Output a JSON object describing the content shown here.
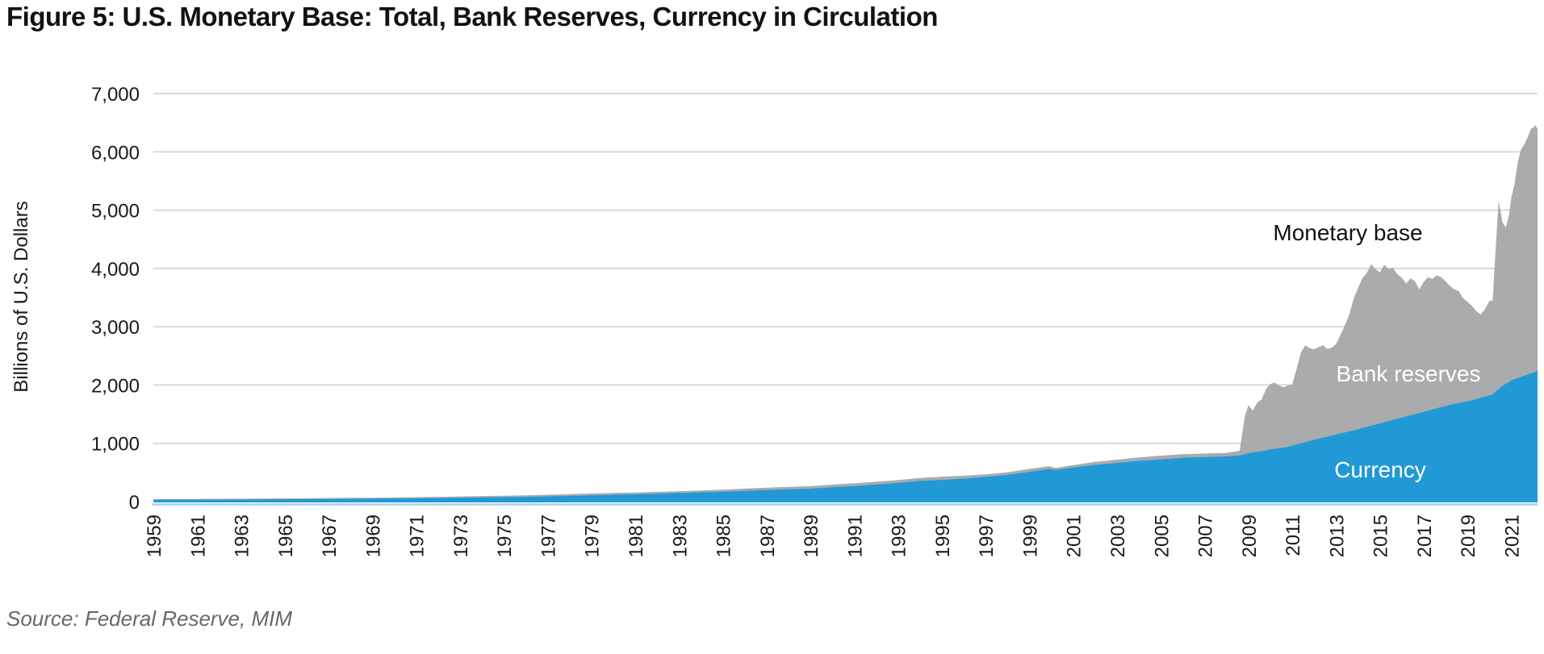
{
  "title": "Figure 5: U.S. Monetary Base: Total, Bank Reserves, Currency in Circulation",
  "source_note": "Source: Federal Reserve, MIM",
  "annotations": {
    "monetary_base": "Monetary base",
    "bank_reserves": "Bank reserves",
    "currency": "Currency"
  },
  "colors": {
    "monetary_base_area": "#a9abad",
    "currency_area": "#2199d6",
    "gridline": "#d9d9d9",
    "baseline": "#a5d3ec",
    "title_text": "#121212",
    "source_text": "#63686d"
  },
  "chart_data": {
    "type": "area",
    "title": "Figure 5: U.S. Monetary Base: Total, Bank Reserves, Currency in Circulation",
    "xlabel": "",
    "ylabel": "Billions of U.S. Dollars",
    "ylim": [
      0,
      7000
    ],
    "xlim": [
      1959,
      2022.2
    ],
    "grid": "horizontal",
    "legend_position": "in-plot text annotations",
    "yticks": [
      {
        "value": 0,
        "label": "0"
      },
      {
        "value": 1000,
        "label": "1,000"
      },
      {
        "value": 2000,
        "label": "2,000"
      },
      {
        "value": 3000,
        "label": "3,000"
      },
      {
        "value": 4000,
        "label": "4,000"
      },
      {
        "value": 5000,
        "label": "5,000"
      },
      {
        "value": 6000,
        "label": "6,000"
      },
      {
        "value": 7000,
        "label": "7,000"
      }
    ],
    "xticks": [
      {
        "value": 1959,
        "label": "1959"
      },
      {
        "value": 1961,
        "label": "1961"
      },
      {
        "value": 1963,
        "label": "1963"
      },
      {
        "value": 1965,
        "label": "1965"
      },
      {
        "value": 1967,
        "label": "1967"
      },
      {
        "value": 1969,
        "label": "1969"
      },
      {
        "value": 1971,
        "label": "1971"
      },
      {
        "value": 1973,
        "label": "1973"
      },
      {
        "value": 1975,
        "label": "1975"
      },
      {
        "value": 1977,
        "label": "1977"
      },
      {
        "value": 1979,
        "label": "1979"
      },
      {
        "value": 1981,
        "label": "1981"
      },
      {
        "value": 1983,
        "label": "1983"
      },
      {
        "value": 1985,
        "label": "1985"
      },
      {
        "value": 1987,
        "label": "1987"
      },
      {
        "value": 1989,
        "label": "1989"
      },
      {
        "value": 1991,
        "label": "1991"
      },
      {
        "value": 1993,
        "label": "1993"
      },
      {
        "value": 1995,
        "label": "1995"
      },
      {
        "value": 1997,
        "label": "1997"
      },
      {
        "value": 1999,
        "label": "1999"
      },
      {
        "value": 2001,
        "label": "2001"
      },
      {
        "value": 2003,
        "label": "2003"
      },
      {
        "value": 2005,
        "label": "2005"
      },
      {
        "value": 2007,
        "label": "2007"
      },
      {
        "value": 2009,
        "label": "2009"
      },
      {
        "value": 2011,
        "label": "2011"
      },
      {
        "value": 2013,
        "label": "2013"
      },
      {
        "value": 2015,
        "label": "2015"
      },
      {
        "value": 2017,
        "label": "2017"
      },
      {
        "value": 2019,
        "label": "2019"
      },
      {
        "value": 2021,
        "label": "2021"
      }
    ],
    "x": [
      1959,
      1960,
      1961,
      1962,
      1963,
      1964,
      1965,
      1966,
      1967,
      1968,
      1969,
      1970,
      1971,
      1972,
      1973,
      1974,
      1975,
      1976,
      1977,
      1978,
      1979,
      1980,
      1981,
      1982,
      1983,
      1984,
      1985,
      1986,
      1987,
      1988,
      1989,
      1990,
      1991,
      1992,
      1993,
      1994,
      1995,
      1996,
      1997,
      1998,
      1999,
      1999.9,
      2000.2,
      2001,
      2002,
      2003,
      2004,
      2005,
      2006,
      2007,
      2008,
      2008.6,
      2008.7,
      2008.85,
      2009,
      2009.2,
      2009.4,
      2009.6,
      2009.8,
      2010,
      2010.2,
      2010.4,
      2010.6,
      2010.8,
      2011,
      2011.2,
      2011.4,
      2011.6,
      2011.8,
      2012,
      2012.2,
      2012.4,
      2012.6,
      2012.8,
      2013,
      2013.2,
      2013.4,
      2013.6,
      2013.8,
      2014,
      2014.2,
      2014.4,
      2014.6,
      2014.8,
      2015,
      2015.2,
      2015.4,
      2015.6,
      2015.8,
      2016,
      2016.2,
      2016.4,
      2016.6,
      2016.8,
      2017,
      2017.2,
      2017.4,
      2017.6,
      2017.8,
      2018,
      2018.2,
      2018.4,
      2018.6,
      2018.8,
      2019,
      2019.2,
      2019.4,
      2019.6,
      2019.8,
      2020,
      2020.15,
      2020.3,
      2020.42,
      2020.5,
      2020.6,
      2020.75,
      2020.9,
      2021,
      2021.15,
      2021.3,
      2021.45,
      2021.6,
      2021.75,
      2021.9,
      2022,
      2022.1,
      2022.2
    ],
    "series": [
      {
        "name": "Monetary base (total)",
        "color": "#a9abad",
        "values": [
          43,
          44,
          45,
          47,
          49,
          52,
          55,
          57,
          61,
          65,
          67,
          71,
          76,
          82,
          88,
          95,
          101,
          108,
          117,
          127,
          138,
          150,
          157,
          167,
          178,
          190,
          205,
          223,
          239,
          253,
          264,
          290,
          314,
          340,
          371,
          405,
          427,
          444,
          468,
          503,
          560,
          608,
          578,
          625,
          681,
          720,
          759,
          787,
          812,
          824,
          836,
          871,
          1130,
          1480,
          1654,
          1560,
          1700,
          1750,
          1930,
          2017,
          2040,
          1990,
          1960,
          1990,
          2010,
          2280,
          2560,
          2680,
          2630,
          2610,
          2650,
          2680,
          2620,
          2640,
          2700,
          2860,
          3020,
          3200,
          3480,
          3660,
          3830,
          3920,
          4070,
          3990,
          3930,
          4060,
          3990,
          4010,
          3900,
          3840,
          3740,
          3830,
          3780,
          3640,
          3770,
          3850,
          3820,
          3880,
          3850,
          3780,
          3700,
          3640,
          3610,
          3490,
          3430,
          3360,
          3270,
          3210,
          3300,
          3440,
          3450,
          4400,
          5150,
          5000,
          4790,
          4700,
          4920,
          5210,
          5450,
          5830,
          6040,
          6130,
          6250,
          6400,
          6410,
          6460,
          6390
        ]
      },
      {
        "name": "Currency in circulation",
        "color": "#2199d6",
        "values": [
          32,
          33,
          33,
          35,
          36,
          38,
          40,
          42,
          44,
          47,
          50,
          53,
          56,
          61,
          65,
          70,
          76,
          82,
          89,
          98,
          106,
          116,
          124,
          134,
          146,
          158,
          170,
          183,
          199,
          212,
          222,
          246,
          267,
          292,
          322,
          354,
          372,
          394,
          424,
          460,
          511,
          560,
          545,
          584,
          630,
          663,
          698,
          724,
          750,
          765,
          775,
          792,
          800,
          815,
          830,
          845,
          855,
          865,
          880,
          895,
          905,
          915,
          925,
          940,
          960,
          980,
          1000,
          1020,
          1040,
          1060,
          1080,
          1095,
          1110,
          1130,
          1150,
          1170,
          1185,
          1200,
          1220,
          1240,
          1260,
          1280,
          1300,
          1320,
          1340,
          1360,
          1380,
          1400,
          1420,
          1440,
          1460,
          1480,
          1500,
          1520,
          1540,
          1560,
          1580,
          1600,
          1620,
          1640,
          1660,
          1675,
          1690,
          1705,
          1720,
          1740,
          1760,
          1780,
          1800,
          1820,
          1840,
          1890,
          1930,
          1960,
          1990,
          2020,
          2050,
          2080,
          2100,
          2120,
          2140,
          2160,
          2180,
          2200,
          2210,
          2230,
          2240
        ]
      }
    ],
    "bank_reserves_note": "Gray band visible between currency area and monetary-base outline represents bank reserves"
  }
}
